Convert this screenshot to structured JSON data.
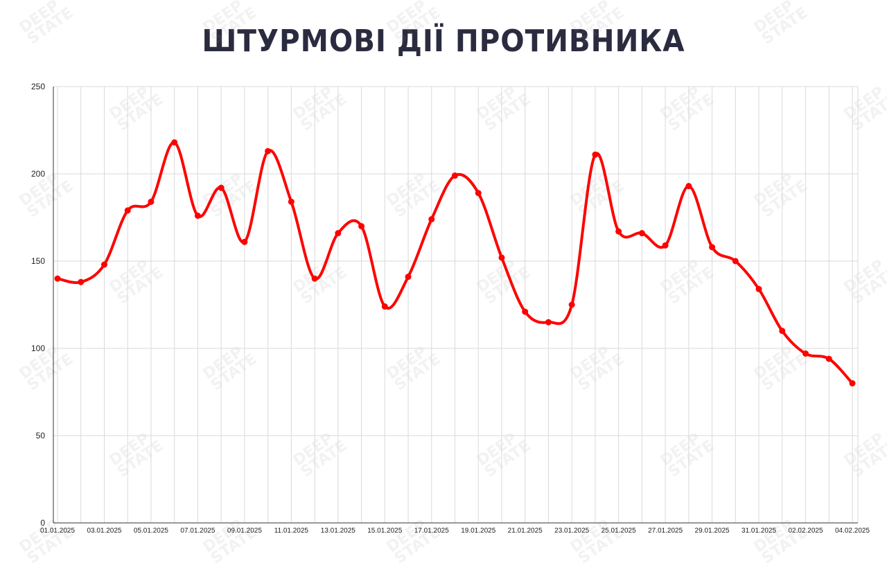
{
  "watermark": "DEEP STATE",
  "colors": {
    "line": "#ff0000",
    "title": "#2b2b40",
    "grid": "#d9d9d9"
  },
  "chart_data": {
    "type": "line",
    "title": "ШТУРМОВІ ДІЇ ПРОТИВНИКА",
    "xlabel": "",
    "ylabel": "",
    "ylim": [
      0,
      250
    ],
    "yticks": [
      0,
      50,
      100,
      150,
      200,
      250
    ],
    "grid": true,
    "smooth": true,
    "x": [
      "01.01.2025",
      "02.01.2025",
      "03.01.2025",
      "04.01.2025",
      "05.01.2025",
      "06.01.2025",
      "07.01.2025",
      "08.01.2025",
      "09.01.2025",
      "10.01.2025",
      "11.01.2025",
      "12.01.2025",
      "13.01.2025",
      "14.01.2025",
      "15.01.2025",
      "16.01.2025",
      "17.01.2025",
      "18.01.2025",
      "19.01.2025",
      "20.01.2025",
      "21.01.2025",
      "22.01.2025",
      "23.01.2025",
      "24.01.2025",
      "25.01.2025",
      "26.01.2025",
      "27.01.2025",
      "28.01.2025",
      "29.01.2025",
      "30.01.2025",
      "31.01.2025",
      "01.02.2025",
      "02.02.2025",
      "03.02.2025",
      "04.02.2025"
    ],
    "xtick_labels": [
      "01.01.2025",
      "03.01.2025",
      "05.01.2025",
      "07.01.2025",
      "09.01.2025",
      "11.01.2025",
      "13.01.2025",
      "15.01.2025",
      "17.01.2025",
      "19.01.2025",
      "21.01.2025",
      "23.01.2025",
      "25.01.2025",
      "27.01.2025",
      "29.01.2025",
      "31.01.2025",
      "02.02.2025",
      "04.02.2025"
    ],
    "series": [
      {
        "values": [
          140,
          138,
          148,
          179,
          184,
          218,
          176,
          192,
          161,
          213,
          184,
          140,
          166,
          170,
          124,
          141,
          174,
          199,
          189,
          152,
          121,
          115,
          125,
          211,
          167,
          166,
          159,
          193,
          158,
          150,
          134,
          110,
          97,
          94,
          80
        ]
      }
    ]
  }
}
